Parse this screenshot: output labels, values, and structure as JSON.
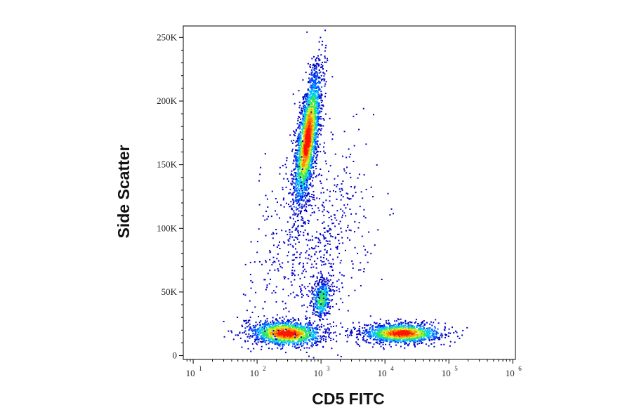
{
  "chart_data": {
    "type": "scatter",
    "title": "",
    "xlabel": "CD5 FITC",
    "ylabel": "Side Scatter",
    "x_scale": "log",
    "xlim": [
      7,
      1100000
    ],
    "ylim": [
      -3000,
      259000
    ],
    "x_ticks": [
      {
        "value": 10,
        "base": "10",
        "exp": "1"
      },
      {
        "value": 100,
        "base": "10",
        "exp": "2"
      },
      {
        "value": 1000,
        "base": "10",
        "exp": "3"
      },
      {
        "value": 10000,
        "base": "10",
        "exp": "4"
      },
      {
        "value": 100000,
        "base": "10",
        "exp": "5"
      },
      {
        "value": 1000000,
        "base": "10",
        "exp": "6"
      }
    ],
    "y_ticks": [
      {
        "value": 0,
        "label": "0"
      },
      {
        "value": 50000,
        "label": "50K"
      },
      {
        "value": 100000,
        "label": "100K"
      },
      {
        "value": 150000,
        "label": "150K"
      },
      {
        "value": 200000,
        "label": "200K"
      },
      {
        "value": 250000,
        "label": "250K"
      }
    ],
    "density_colors": [
      "#0000c8",
      "#0055ff",
      "#00c8ff",
      "#2ee65a",
      "#d2ee1e",
      "#ff8c00",
      "#ff1400"
    ],
    "grid": false,
    "legend": "none",
    "populations": [
      {
        "id": "granulocytes",
        "x_center": 600,
        "y_center": 170000,
        "count": 2600
      },
      {
        "id": "monocytes",
        "x_center": 1000,
        "y_center": 45000,
        "count": 450
      },
      {
        "id": "cd5-negative-lymphocytes",
        "x_center": 280,
        "y_center": 18000,
        "count": 1500
      },
      {
        "id": "cd5-positive-lymphocytes",
        "x_center": 18000,
        "y_center": 18000,
        "count": 1500
      },
      {
        "id": "scattered-events",
        "x_center": 700,
        "y_center": 90000,
        "count": 700
      }
    ]
  }
}
